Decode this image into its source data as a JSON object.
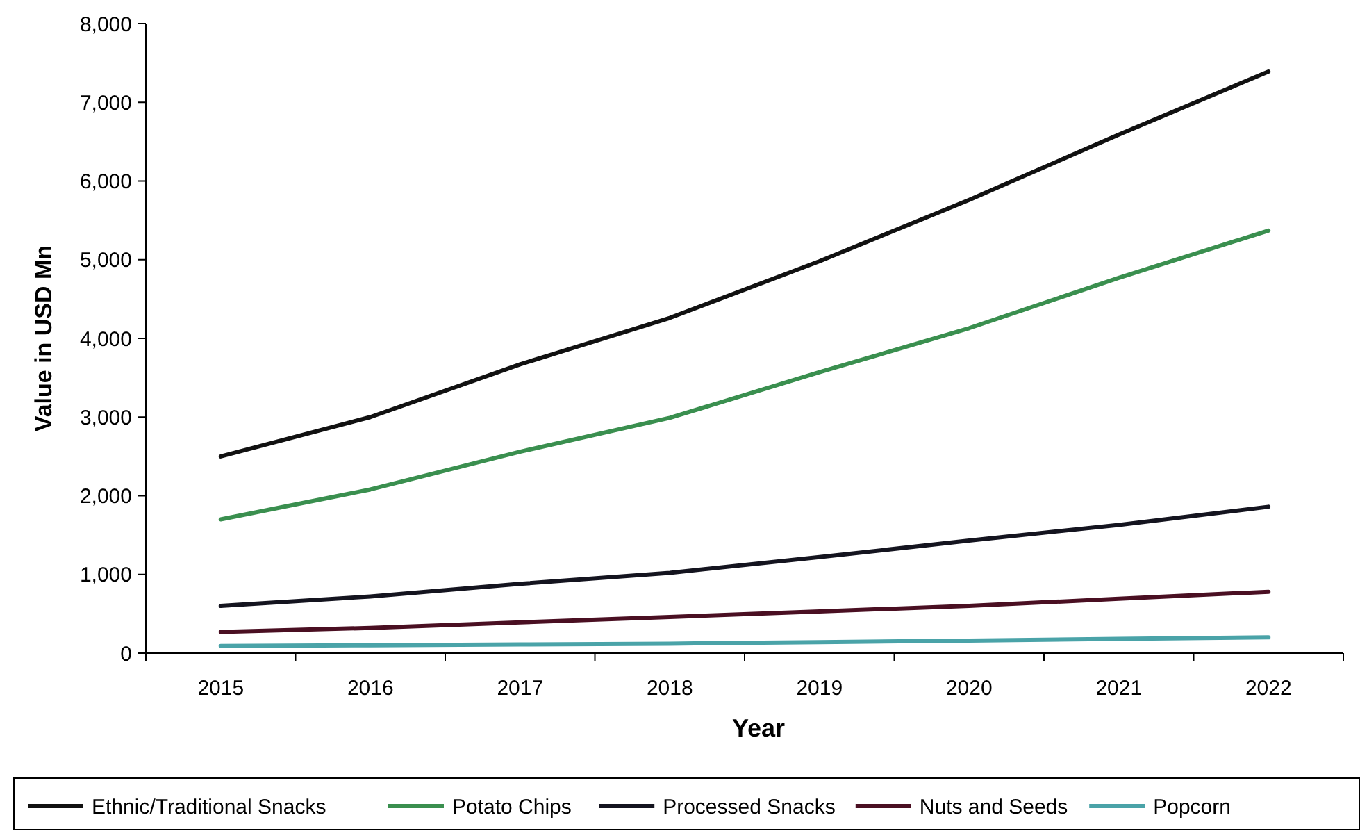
{
  "chart_data": {
    "type": "line",
    "xlabel": "Year",
    "ylabel": "Value in USD Mn",
    "categories": [
      "2015",
      "2016",
      "2017",
      "2018",
      "2019",
      "2020",
      "2021",
      "2022"
    ],
    "series": [
      {
        "name": "Ethnic/Traditional Snacks",
        "color": "#111111",
        "values": [
          2500,
          3000,
          3670,
          4260,
          4980,
          5760,
          6590,
          7390
        ]
      },
      {
        "name": "Potato Chips",
        "color": "#3a8f4f",
        "values": [
          1700,
          2080,
          2560,
          2990,
          3570,
          4130,
          4770,
          5370
        ]
      },
      {
        "name": "Processed Snacks",
        "color": "#14141f",
        "values": [
          600,
          720,
          880,
          1020,
          1220,
          1430,
          1630,
          1860
        ]
      },
      {
        "name": "Nuts and Seeds",
        "color": "#4a0f22",
        "values": [
          270,
          320,
          390,
          460,
          530,
          600,
          690,
          780
        ]
      },
      {
        "name": "Popcorn",
        "color": "#4aa3a8",
        "values": [
          90,
          100,
          110,
          120,
          140,
          160,
          180,
          200
        ]
      }
    ],
    "ylim": [
      0,
      8000
    ],
    "yticks": [
      {
        "value": 0,
        "label": "0"
      },
      {
        "value": 1000,
        "label": "1,000"
      },
      {
        "value": 2000,
        "label": "2,000"
      },
      {
        "value": 3000,
        "label": "3,000"
      },
      {
        "value": 4000,
        "label": "4,000"
      },
      {
        "value": 5000,
        "label": "5,000"
      },
      {
        "value": 6000,
        "label": "6,000"
      },
      {
        "value": 7000,
        "label": "7,000"
      },
      {
        "value": 8000,
        "label": "8,000"
      }
    ],
    "grid": false,
    "legend": "bottom",
    "marker": "none",
    "line_style": "solid"
  }
}
